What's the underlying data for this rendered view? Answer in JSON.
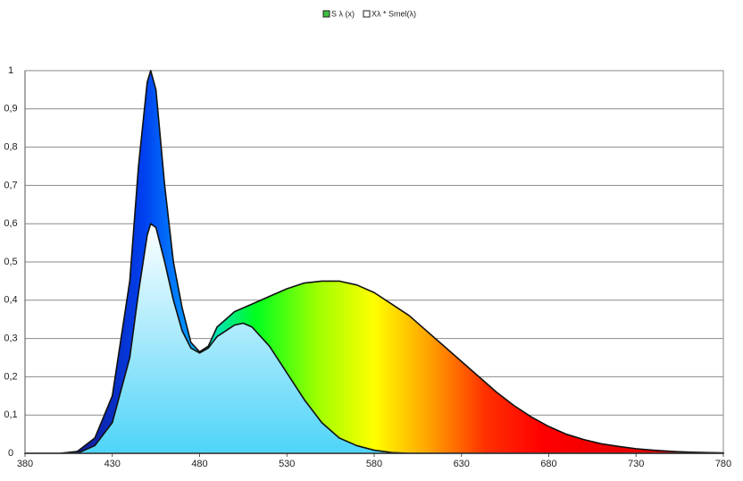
{
  "chart_data": {
    "type": "area",
    "x": [
      380,
      390,
      400,
      410,
      420,
      430,
      440,
      445,
      450,
      452,
      455,
      460,
      465,
      470,
      475,
      480,
      485,
      490,
      500,
      505,
      510,
      520,
      530,
      540,
      550,
      560,
      570,
      580,
      590,
      600,
      610,
      620,
      630,
      640,
      650,
      660,
      670,
      680,
      690,
      700,
      710,
      720,
      730,
      740,
      750,
      760,
      770,
      780
    ],
    "series": [
      {
        "name": "S λ (x)",
        "color": "#3fbf3f",
        "values": [
          0,
          0,
          0,
          0.005,
          0.04,
          0.15,
          0.45,
          0.75,
          0.97,
          1,
          0.95,
          0.7,
          0.5,
          0.38,
          0.29,
          0.265,
          0.28,
          0.33,
          0.37,
          0.38,
          0.39,
          0.41,
          0.43,
          0.445,
          0.45,
          0.45,
          0.44,
          0.42,
          0.39,
          0.36,
          0.32,
          0.28,
          0.24,
          0.2,
          0.16,
          0.125,
          0.095,
          0.07,
          0.05,
          0.036,
          0.025,
          0.018,
          0.012,
          0.008,
          0.005,
          0.003,
          0.002,
          0.001
        ]
      },
      {
        "name": "Xλ * Smel(λ)",
        "color": "#ffffff",
        "values": [
          0,
          0,
          0,
          0,
          0.02,
          0.08,
          0.25,
          0.42,
          0.57,
          0.6,
          0.59,
          0.5,
          0.4,
          0.32,
          0.275,
          0.262,
          0.275,
          0.305,
          0.335,
          0.34,
          0.33,
          0.28,
          0.21,
          0.14,
          0.08,
          0.04,
          0.02,
          0.008,
          0.002,
          0,
          0,
          0,
          0,
          0,
          0,
          0,
          0,
          0,
          0,
          0,
          0,
          0,
          0,
          0,
          0,
          0,
          0,
          0
        ]
      }
    ],
    "xlim": [
      380,
      780
    ],
    "xticks": [
      380,
      430,
      480,
      530,
      580,
      630,
      680,
      730,
      780
    ],
    "ylim": [
      0,
      1
    ],
    "yticks": [
      0,
      {
        "value": 0.1,
        "label": "0,1"
      },
      {
        "value": 0.2,
        "label": "0,2"
      },
      {
        "value": 0.3,
        "label": "0,3"
      },
      {
        "value": 0.4,
        "label": "0,4"
      },
      {
        "value": 0.5,
        "label": "0,5"
      },
      {
        "value": 0.6,
        "label": "0,6"
      },
      {
        "value": 0.7,
        "label": "0,7"
      },
      {
        "value": 0.8,
        "label": "0,8"
      },
      {
        "value": 0.9,
        "label": "0,9"
      },
      1
    ],
    "grid": true,
    "legend": "top"
  }
}
